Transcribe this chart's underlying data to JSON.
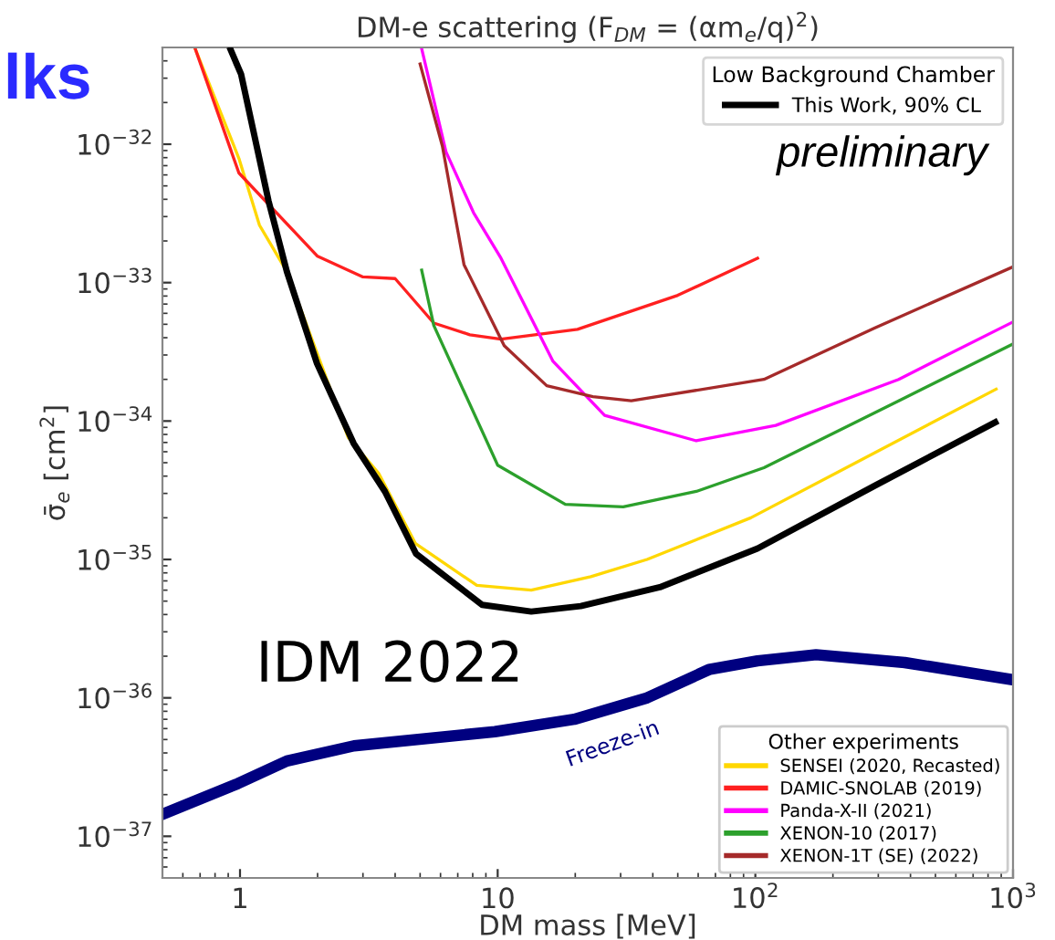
{
  "chart_data": {
    "type": "line",
    "title": "DM-e scattering (F$_{DM}$ = (αm$_{e}$/q)$^{2}$)",
    "xlabel": "DM mass [MeV]",
    "ylabel": "σ̄$_{e}$ [cm$^{2}$]",
    "log": "xy",
    "xlim": [
      0.5,
      1000
    ],
    "ylim": [
      5e-38,
      5e-32
    ],
    "xticks": [
      1,
      10,
      {
        "value": 100,
        "label": "10$^{2}$"
      },
      {
        "value": 1000,
        "label": "10$^{3}$"
      }
    ],
    "yticks": [
      {
        "value": 1e-37,
        "label": "10$^{−37}$"
      },
      {
        "value": 1e-36,
        "label": "10$^{−36}$"
      },
      {
        "value": 1e-35,
        "label": "10$^{−35}$"
      },
      {
        "value": 1e-34,
        "label": "10$^{−34}$"
      },
      {
        "value": 1e-33,
        "label": "10$^{−33}$"
      },
      {
        "value": 1e-32,
        "label": "10$^{−32}$"
      }
    ],
    "grid": false,
    "legend": [
      "top right",
      "bottom right"
    ],
    "legend_title": [
      "Low Background Chamber",
      "Other experiments"
    ],
    "annotations": [
      "preliminary",
      "IDM 2022",
      "lks"
    ],
    "series": [
      {
        "name": "This Work, 90% CL",
        "color": "#000000",
        "x": [
          0.92,
          1.01,
          1.29,
          1.52,
          1.99,
          2.76,
          3.65,
          4.82,
          8.7,
          13.5,
          21,
          42.6,
          102,
          290,
          853
        ],
        "values": [
          4.8e-32,
          3.2e-32,
          3.9e-33,
          1.2e-33,
          2.6e-34,
          6.9e-35,
          3.1e-35,
          1.1e-35,
          4.7e-36,
          4.2e-36,
          4.6e-36,
          6.3e-36,
          1.2e-35,
          3.4e-35,
          9.8e-35
        ]
      },
      {
        "name": "SENSEI (2020, Recasted)",
        "color": "#ffd700",
        "x": [
          0.67,
          0.99,
          1.19,
          1.52,
          2.63,
          3.45,
          4.8,
          8.3,
          13.5,
          23,
          38,
          96,
          860
        ],
        "values": [
          4.9e-32,
          7.9e-33,
          2.6e-33,
          1.2e-33,
          7.6e-35,
          4.2e-35,
          1.3e-35,
          6.5e-36,
          6e-36,
          7.5e-36,
          1e-35,
          2e-35,
          1.7e-34
        ]
      },
      {
        "name": "DAMIC-SNOLAB (2019)",
        "color": "#ff2020",
        "x": [
          0.67,
          0.99,
          2.0,
          3.0,
          4.0,
          5.65,
          7.8,
          10.3,
          20.4,
          50,
          102
        ],
        "values": [
          4.9e-32,
          6.2e-33,
          1.55e-33,
          1.1e-33,
          1.07e-33,
          5.1e-34,
          4.2e-34,
          3.9e-34,
          4.6e-34,
          8.1e-34,
          1.5e-33
        ]
      },
      {
        "name": "Panda-X-II (2021)",
        "color": "#ff00ff",
        "x": [
          5.07,
          6.3,
          8.06,
          10.3,
          16.4,
          26,
          59,
          120,
          360,
          1000
        ],
        "values": [
          4.9e-32,
          8.8e-33,
          3.2e-33,
          1.5e-33,
          2.7e-34,
          1.1e-34,
          7.2e-35,
          9.3e-35,
          2e-34,
          5.2e-34
        ]
      },
      {
        "name": "XENON-10 (2017)",
        "color": "#2ca02c",
        "x": [
          5.07,
          5.65,
          10.0,
          18.3,
          30.7,
          59,
          108,
          360,
          1000
        ],
        "values": [
          1.23e-33,
          4.9e-34,
          4.8e-35,
          2.5e-35,
          2.4e-35,
          3.1e-35,
          4.6e-35,
          1.4e-34,
          3.6e-34
        ]
      },
      {
        "name": "XENON-1T (SE) (2022)",
        "color": "#a52a2a",
        "x": [
          5.0,
          6.1,
          7.4,
          10.6,
          15.5,
          23.4,
          33,
          108,
          290,
          1000
        ],
        "values": [
          3.8e-32,
          9.7e-33,
          1.35e-33,
          3.5e-34,
          1.8e-34,
          1.5e-34,
          1.4e-34,
          2e-34,
          4.7e-34,
          1.3e-33
        ]
      },
      {
        "name": "Freeze-in",
        "color": "#000080",
        "x": [
          0.5,
          0.98,
          1.52,
          2.77,
          9.75,
          19.8,
          38,
          66,
          102,
          172,
          380,
          1000
        ],
        "values": [
          1.44e-37,
          2.4e-37,
          3.5e-37,
          4.5e-37,
          5.7e-37,
          7e-37,
          1e-36,
          1.6e-36,
          1.85e-36,
          2.05e-36,
          1.8e-36,
          1.35e-36
        ]
      }
    ]
  }
}
